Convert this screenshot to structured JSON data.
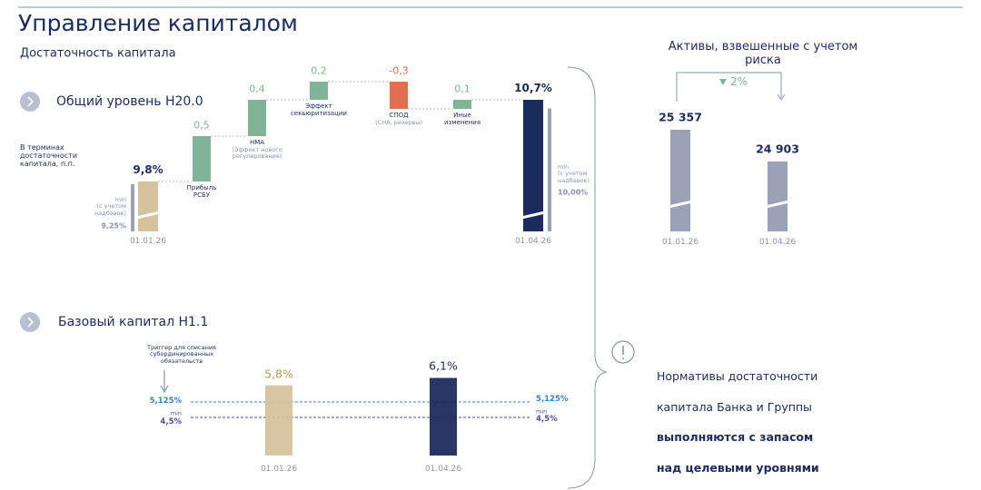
{
  "title": "Управление капиталом",
  "note": {
    "lines": [
      "Нормативы достаточности",
      "капитала Банка и Группы",
      "выполняются с запасом",
      "над целевыми уровнями"
    ]
  },
  "chart_data": [
    {
      "type": "waterfall",
      "title": "Достаточность капитала",
      "subtitle": "Общий уровень Н20.0",
      "y_label": "В терминах\nдостаточности\nкапитала, п.п.",
      "categories": [
        "01.01.26",
        "Прибыль\nРСБУ",
        "НМА",
        "Эффект\nсекьюритизации",
        "СПОД",
        "Иные\nизменения",
        "01.04.26"
      ],
      "category_notes": [
        null,
        null,
        "(Эффект нового\nрегулирования)",
        null,
        "(СНА, резервы)",
        null,
        null
      ],
      "values": [
        9.8,
        0.5,
        0.4,
        0.2,
        -0.3,
        0.1,
        10.7
      ],
      "value_labels": [
        "9,8%",
        "0,5",
        "0,4",
        "0,2",
        "-0,3",
        "0,1",
        "10,7%"
      ],
      "colors": [
        "#d6c29c",
        "#7fb596",
        "#7fb596",
        "#7fb596",
        "#e06f52",
        "#7fb596",
        "#1c2b5e"
      ],
      "min_markers": [
        {
          "label": "min\n(с учетом\nнадбавок)",
          "value": 9.25,
          "value_label": "9,25%"
        },
        {
          "label": "min\n(с учетом\nнадбавок)",
          "value": 10.0,
          "value_label": "10,00%"
        }
      ]
    },
    {
      "type": "bar",
      "title": "Активы, взвешенные с учетом риска",
      "categories": [
        "01.01.26",
        "01.04.26"
      ],
      "values": [
        25357,
        24903
      ],
      "value_labels": [
        "25 357",
        "24 903"
      ],
      "color": "#9aa2b8",
      "change_label": "2%"
    },
    {
      "type": "threshold-bar",
      "title": "Базовый капитал Н1.1",
      "categories": [
        "01.01.26",
        "01.04.26"
      ],
      "values": [
        5.8,
        6.1
      ],
      "value_labels": [
        "5,8%",
        "6,1%"
      ],
      "colors": [
        "#d6c29c",
        "#1c2b5e"
      ],
      "label_colors": [
        "#b59a55",
        "#1c2b5e"
      ],
      "thresholds": [
        {
          "value": 5.125,
          "label": "5,125%",
          "color": "#3b7fc4"
        },
        {
          "value": 4.5,
          "label": "4,5%",
          "caption": "min",
          "color": "#5a4a9a"
        }
      ],
      "trigger_note": "Триггер для списания\nсубординированных\nобязательств"
    }
  ]
}
